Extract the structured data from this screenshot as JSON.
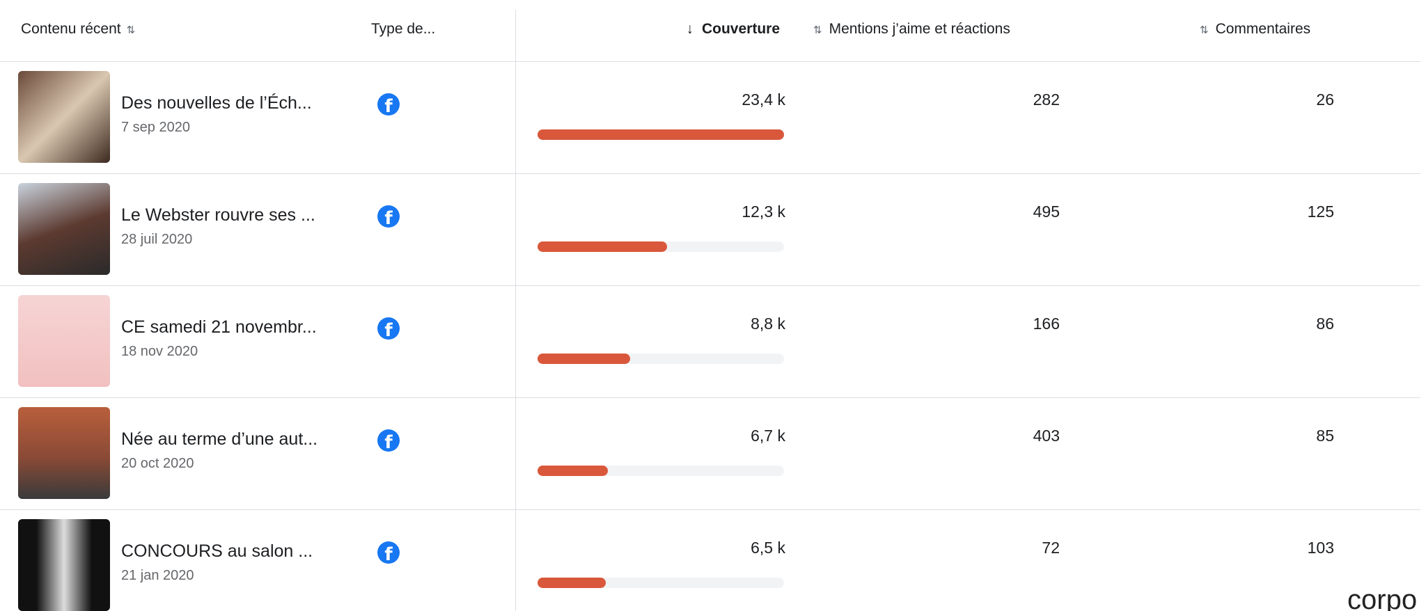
{
  "header": {
    "content": "Contenu récent",
    "type": "Type de...",
    "reach": "Couverture",
    "reactions": "Mentions j’aime et réactions",
    "comments": "Commentaires"
  },
  "rows": [
    {
      "title": "Des nouvelles de l’Éch...",
      "date": "7 sep 2020",
      "reach": {
        "value": 23400,
        "label": "23,4 k"
      },
      "reactions": 282,
      "comments": 26
    },
    {
      "title": "Le Webster rouvre ses ...",
      "date": "28 juil 2020",
      "reach": {
        "value": 12300,
        "label": "12,3 k"
      },
      "reactions": 495,
      "comments": 125
    },
    {
      "title": "CE samedi 21 novembr...",
      "date": "18 nov 2020",
      "reach": {
        "value": 8800,
        "label": "8,8 k"
      },
      "reactions": 166,
      "comments": 86
    },
    {
      "title": "Née au terme d’une aut...",
      "date": "20 oct 2020",
      "reach": {
        "value": 6700,
        "label": "6,7 k"
      },
      "reactions": 403,
      "comments": 85
    },
    {
      "title": "CONCOURS au salon ...",
      "date": "21 jan 2020",
      "reach": {
        "value": 6500,
        "label": "6,5 k"
      },
      "reactions": 72,
      "comments": 103
    }
  ],
  "watermark": "corpo"
}
